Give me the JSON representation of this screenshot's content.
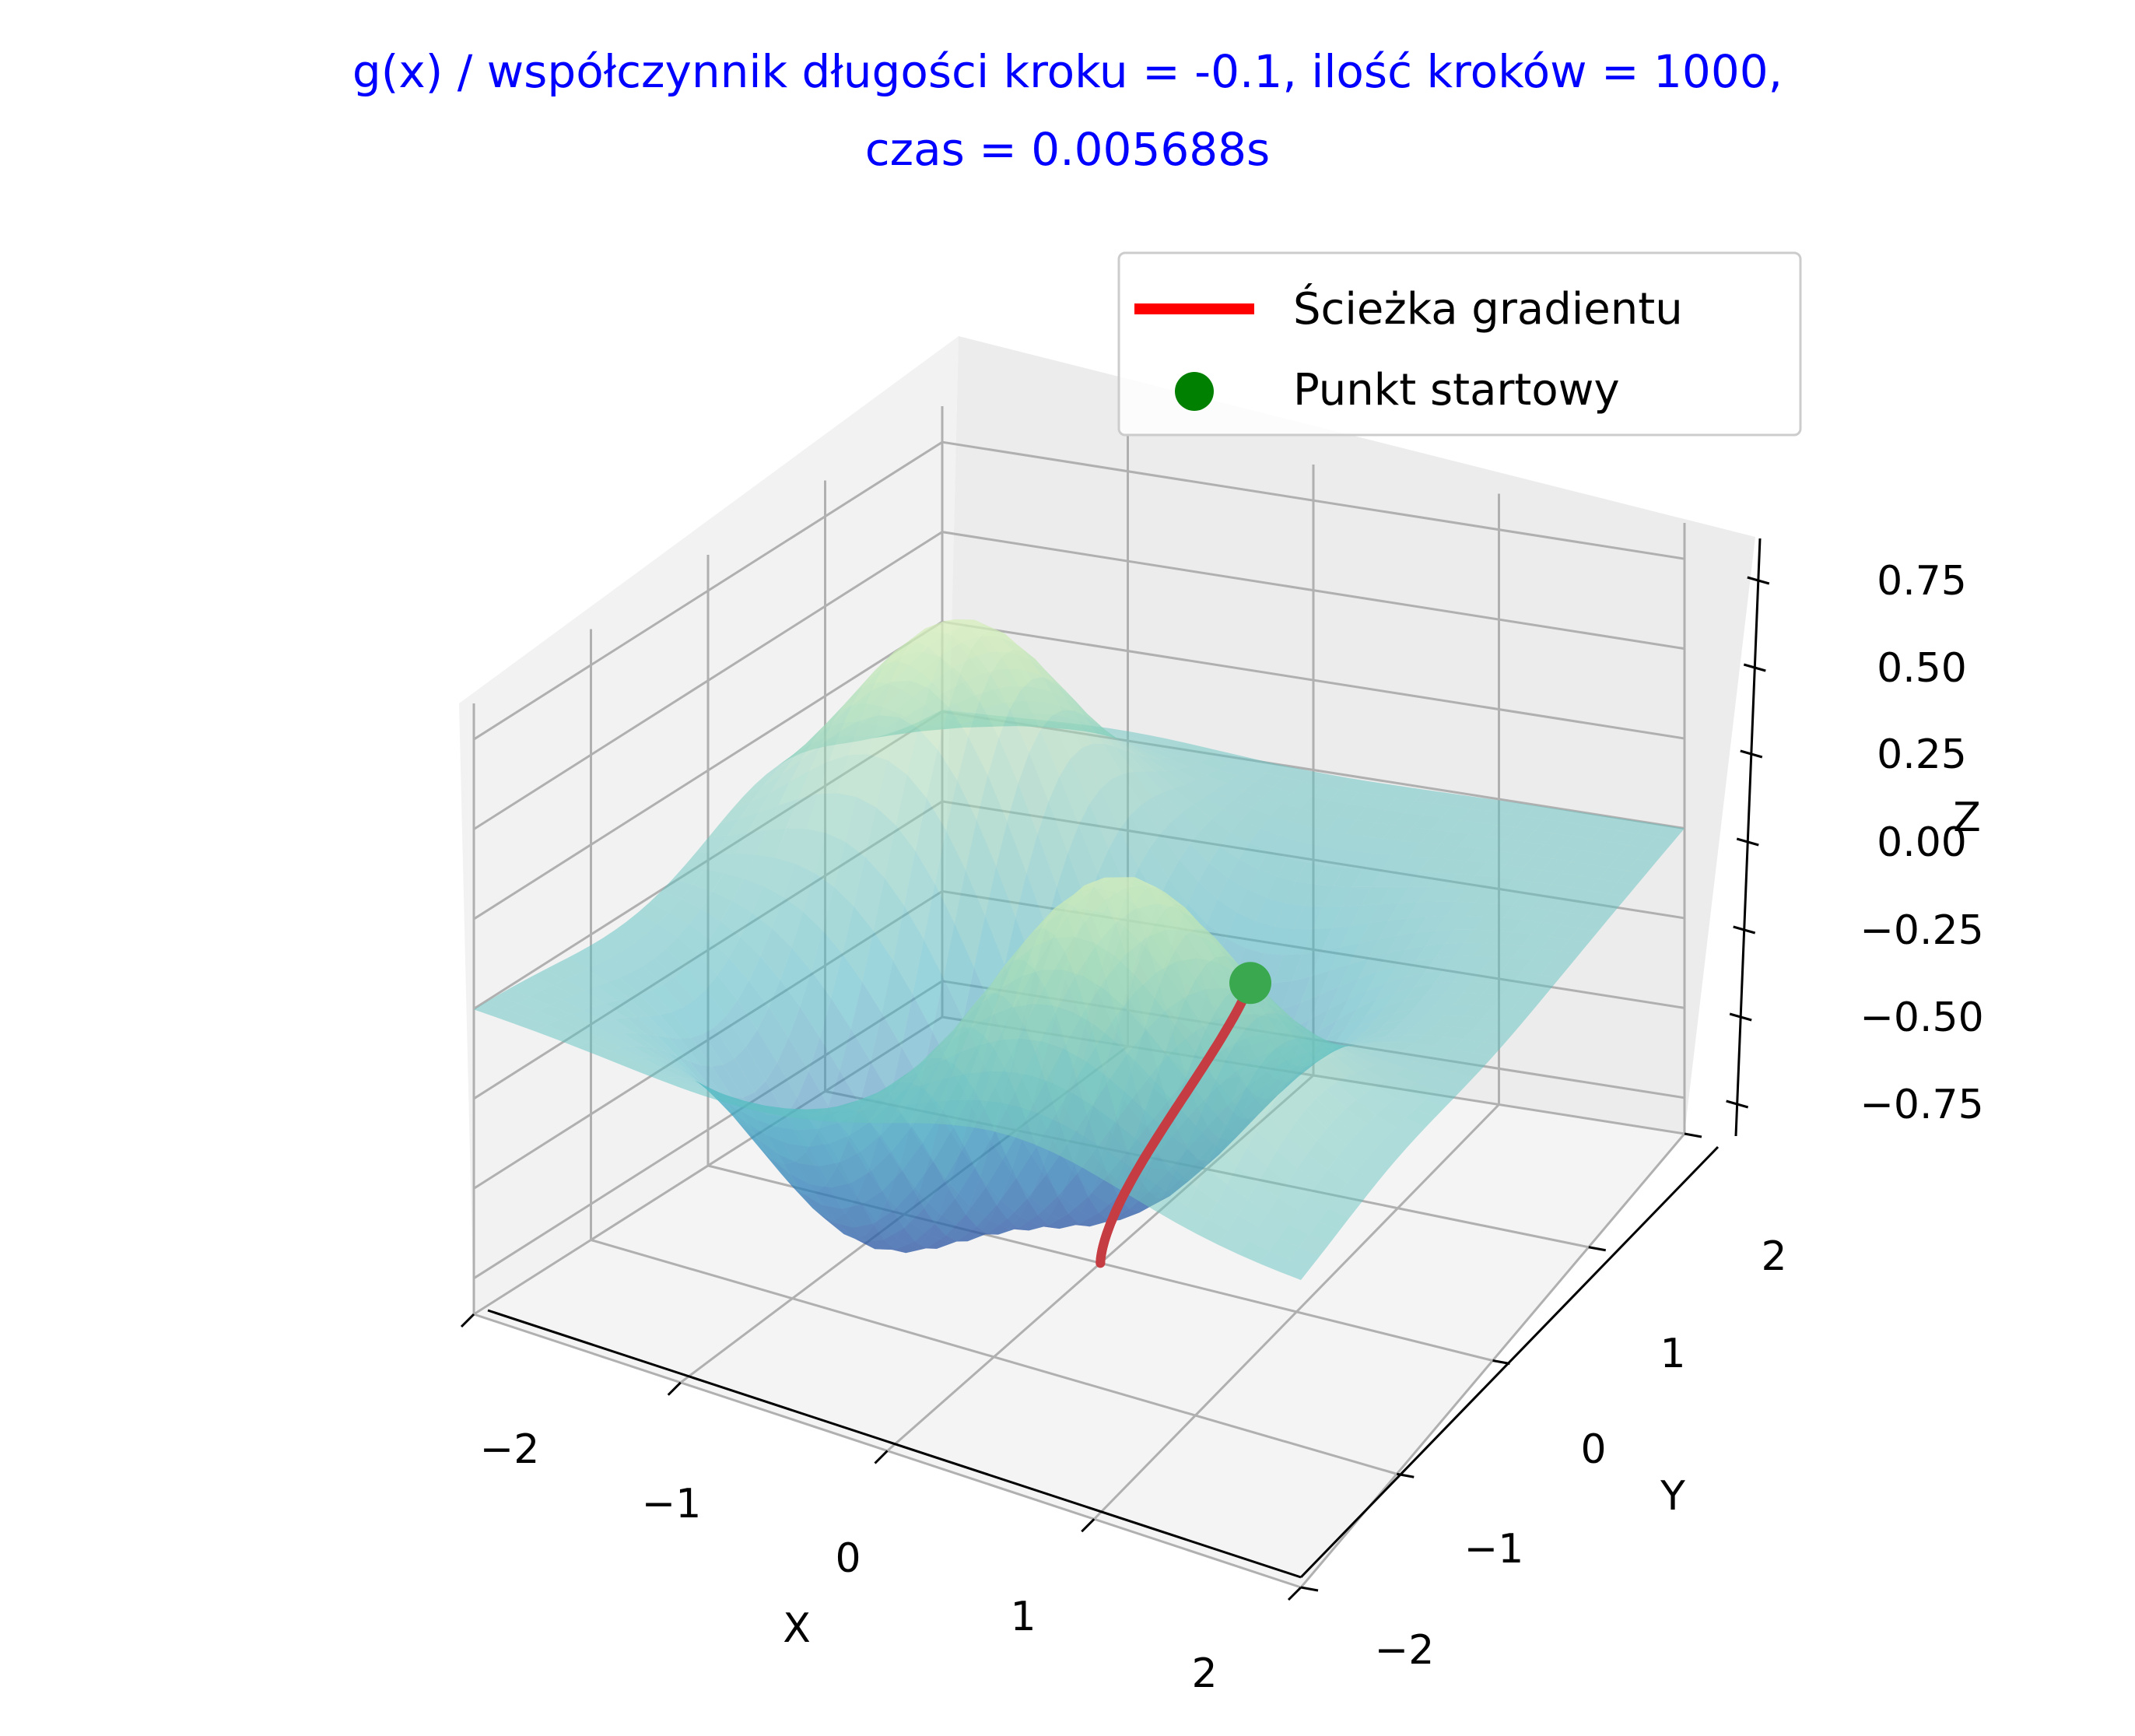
{
  "chart_data": {
    "type": "surface3d",
    "title_line1": "g(x) / współczynnik długości kroku = -0.1, ilość kroków = 1000,",
    "title_line2": "czas = 0.005688s",
    "title_color": "#0000ff",
    "xlabel": "X",
    "ylabel": "Y",
    "zlabel": "Z",
    "x_ticks": [
      "−2",
      "−1",
      "0",
      "1",
      "2"
    ],
    "y_ticks": [
      "−2",
      "−1",
      "0",
      "1",
      "2"
    ],
    "z_ticks": [
      "−0.75",
      "−0.50",
      "−0.25",
      "0.00",
      "0.25",
      "0.50",
      "0.75"
    ],
    "xlim": [
      -2,
      2
    ],
    "ylim": [
      -2,
      2
    ],
    "zlim": [
      -0.85,
      0.85
    ],
    "grid": true,
    "colormap": "YlGnBu",
    "surface_alpha": 0.5,
    "legend": {
      "position": "upper-right",
      "items": [
        {
          "label": "Ścieżka gradientu",
          "type": "line",
          "color": "#ff0000"
        },
        {
          "label": "Punkt startowy",
          "type": "marker",
          "color": "#008000"
        }
      ]
    },
    "start_point": {
      "x": 0.5,
      "y": 0.5,
      "z": -0.14
    },
    "end_point": {
      "x": 0.0,
      "y": 0.0,
      "z": -0.85
    }
  }
}
